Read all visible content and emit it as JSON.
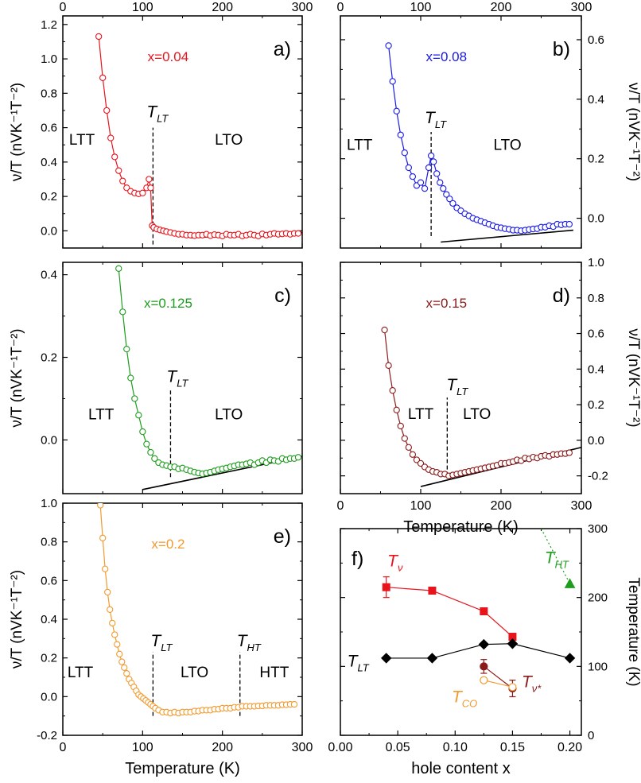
{
  "chart_data": [
    {
      "panel_label": "a)",
      "type": "scatter",
      "series_label": "x=0.04",
      "color": "#e8141c",
      "x_ticks_top": [
        "0",
        "100",
        "200",
        "300"
      ],
      "x_ticks_bottom": [],
      "y_ticks": [
        "0.0",
        "0.2",
        "0.4",
        "0.6",
        "0.8",
        "1.0",
        "1.2"
      ],
      "y_tick_values": [
        0,
        0.2,
        0.4,
        0.6,
        0.8,
        1.0,
        1.2
      ],
      "ylabel": "ν/T (nVK⁻¹T⁻²)",
      "y_axis_side": "left",
      "xlim": [
        0,
        300
      ],
      "ylim": [
        -0.1,
        1.25
      ],
      "annotations": [
        {
          "text": "LTT",
          "x": 24,
          "y": 0.5
        },
        {
          "text": "LTO",
          "x": 208,
          "y": 0.5
        },
        {
          "text": "T",
          "sub": "LT",
          "x": 105,
          "y": 0.66
        }
      ],
      "transitions": [
        {
          "x": 113,
          "y1": -0.08,
          "y2": 0.6
        }
      ],
      "fit_line": {
        "x": [
          160,
          300
        ],
        "y": [
          -0.04,
          -0.01
        ]
      },
      "points": {
        "x": [
          45,
          50,
          55,
          60,
          65,
          70,
          75,
          80,
          85,
          90,
          95,
          100,
          105,
          108,
          110,
          112,
          114,
          118,
          122,
          126,
          130,
          135,
          140,
          145,
          150,
          155,
          160,
          165,
          170,
          175,
          180,
          185,
          190,
          195,
          200,
          205,
          210,
          215,
          220,
          225,
          230,
          235,
          240,
          245,
          250,
          255,
          260,
          265,
          270,
          275,
          280,
          285,
          290,
          295
        ],
        "y": [
          1.13,
          0.89,
          0.7,
          0.54,
          0.43,
          0.35,
          0.29,
          0.25,
          0.23,
          0.22,
          0.215,
          0.22,
          0.25,
          0.3,
          0.25,
          0.03,
          0.02,
          0.01,
          0.005,
          0.0,
          -0.005,
          -0.01,
          -0.015,
          -0.02,
          -0.02,
          -0.025,
          -0.025,
          -0.028,
          -0.025,
          -0.025,
          -0.02,
          -0.028,
          -0.022,
          -0.025,
          -0.03,
          -0.02,
          -0.025,
          -0.025,
          -0.02,
          -0.03,
          -0.025,
          -0.02,
          -0.025,
          -0.03,
          -0.018,
          -0.025,
          -0.02,
          -0.015,
          -0.02,
          -0.018,
          -0.015,
          -0.02,
          -0.015,
          -0.015
        ]
      }
    },
    {
      "panel_label": "b)",
      "type": "scatter",
      "series_label": "x=0.08",
      "color": "#1a1ae6",
      "x_ticks_top": [
        "0",
        "100",
        "200",
        "300"
      ],
      "x_ticks_bottom": [],
      "y_ticks": [
        "0.0",
        "0.2",
        "0.4",
        "0.6"
      ],
      "y_tick_values": [
        0,
        0.2,
        0.4,
        0.6
      ],
      "ylabel": "ν/T (nVK⁻¹T⁻²)",
      "y_axis_side": "right",
      "xlim": [
        0,
        300
      ],
      "ylim": [
        -0.1,
        0.68
      ],
      "annotations": [
        {
          "text": "LTT",
          "x": 24,
          "y": 0.23
        },
        {
          "text": "LTO",
          "x": 208,
          "y": 0.23
        },
        {
          "text": "T",
          "sub": "LT",
          "x": 105,
          "y": 0.32
        }
      ],
      "transitions": [
        {
          "x": 113,
          "y1": -0.06,
          "y2": 0.29
        }
      ],
      "fit_line": {
        "x": [
          125,
          290
        ],
        "y": [
          -0.08,
          -0.04
        ]
      },
      "points": {
        "x": [
          60,
          65,
          70,
          75,
          80,
          85,
          90,
          95,
          100,
          105,
          110,
          113,
          116,
          120,
          124,
          128,
          132,
          136,
          140,
          145,
          150,
          155,
          160,
          165,
          170,
          175,
          180,
          185,
          190,
          195,
          200,
          205,
          210,
          215,
          220,
          225,
          230,
          235,
          240,
          245,
          250,
          255,
          260,
          265,
          270,
          275,
          280,
          285
        ],
        "y": [
          0.58,
          0.46,
          0.36,
          0.28,
          0.22,
          0.17,
          0.14,
          0.11,
          0.12,
          0.1,
          0.17,
          0.21,
          0.19,
          0.15,
          0.12,
          0.1,
          0.08,
          0.065,
          0.05,
          0.035,
          0.025,
          0.015,
          0.008,
          0.0,
          -0.005,
          -0.01,
          -0.015,
          -0.02,
          -0.025,
          -0.03,
          -0.032,
          -0.035,
          -0.037,
          -0.04,
          -0.04,
          -0.042,
          -0.04,
          -0.038,
          -0.036,
          -0.035,
          -0.03,
          -0.03,
          -0.025,
          -0.028,
          -0.02,
          -0.022,
          -0.02,
          -0.02
        ]
      }
    },
    {
      "panel_label": "c)",
      "type": "scatter",
      "series_label": "x=0.125",
      "color": "#1f9d1f",
      "x_ticks_top": [],
      "x_ticks_bottom": [],
      "y_ticks": [
        "0.0",
        "0.2",
        "0.4"
      ],
      "y_tick_values": [
        0,
        0.2,
        0.4
      ],
      "ylabel": "ν/T (nVK⁻¹T⁻²)",
      "y_axis_side": "left",
      "xlim": [
        0,
        300
      ],
      "ylim": [
        -0.13,
        0.43
      ],
      "annotations": [
        {
          "text": "LTT",
          "x": 48,
          "y": 0.05
        },
        {
          "text": "LTO",
          "x": 208,
          "y": 0.05
        },
        {
          "text": "T",
          "sub": "LT",
          "x": 130,
          "y": 0.14
        }
      ],
      "transitions": [
        {
          "x": 135,
          "y1": -0.09,
          "y2": 0.12
        }
      ],
      "fit_line": {
        "x": [
          100,
          300
        ],
        "y": [
          -0.12,
          -0.04
        ]
      },
      "points": {
        "x": [
          70,
          75,
          80,
          85,
          90,
          95,
          100,
          105,
          110,
          115,
          120,
          125,
          130,
          135,
          140,
          145,
          150,
          155,
          160,
          165,
          170,
          175,
          180,
          185,
          190,
          195,
          200,
          205,
          210,
          215,
          220,
          225,
          230,
          235,
          240,
          245,
          250,
          255,
          260,
          265,
          270,
          275,
          280,
          285,
          290,
          295
        ],
        "y": [
          0.415,
          0.31,
          0.22,
          0.15,
          0.1,
          0.06,
          0.02,
          -0.01,
          -0.03,
          -0.045,
          -0.055,
          -0.06,
          -0.062,
          -0.065,
          -0.065,
          -0.07,
          -0.068,
          -0.072,
          -0.075,
          -0.078,
          -0.08,
          -0.082,
          -0.08,
          -0.078,
          -0.075,
          -0.072,
          -0.07,
          -0.068,
          -0.065,
          -0.063,
          -0.06,
          -0.06,
          -0.058,
          -0.055,
          -0.06,
          -0.055,
          -0.05,
          -0.055,
          -0.048,
          -0.05,
          -0.052,
          -0.045,
          -0.048,
          -0.045,
          -0.045,
          -0.042
        ]
      }
    },
    {
      "panel_label": "d)",
      "type": "scatter",
      "series_label": "x=0.15",
      "color": "#8b1a1a",
      "x_ticks_top": [],
      "x_ticks_bottom": [
        "0",
        "100",
        "200",
        "300"
      ],
      "xlabel": "Temperature (K)",
      "y_ticks": [
        "-0.2",
        "0.0",
        "0.2",
        "0.4",
        "0.6",
        "0.8",
        "1.0"
      ],
      "y_tick_values": [
        -0.2,
        0,
        0.2,
        0.4,
        0.6,
        0.8,
        1.0
      ],
      "ylabel": "ν/T (nVK⁻¹T⁻²)",
      "y_axis_side": "right",
      "xlim": [
        0,
        300
      ],
      "ylim": [
        -0.3,
        1.0
      ],
      "annotations": [
        {
          "text": "LTT",
          "x": 100,
          "y": 0.12
        },
        {
          "text": "LTO",
          "x": 170,
          "y": 0.12
        },
        {
          "text": "T",
          "sub": "LT",
          "x": 132,
          "y": 0.28
        }
      ],
      "transitions": [
        {
          "x": 133,
          "y1": -0.2,
          "y2": 0.24
        }
      ],
      "fit_line": {
        "x": [
          100,
          300
        ],
        "y": [
          -0.26,
          -0.04
        ]
      },
      "points": {
        "x": [
          55,
          60,
          65,
          70,
          75,
          80,
          85,
          90,
          95,
          100,
          105,
          110,
          115,
          120,
          125,
          130,
          135,
          140,
          145,
          150,
          155,
          160,
          165,
          170,
          175,
          180,
          185,
          190,
          195,
          200,
          205,
          210,
          215,
          220,
          225,
          230,
          235,
          240,
          245,
          250,
          255,
          260,
          265,
          270,
          275,
          280,
          285
        ],
        "y": [
          0.62,
          0.42,
          0.28,
          0.17,
          0.08,
          0.01,
          -0.04,
          -0.08,
          -0.11,
          -0.13,
          -0.15,
          -0.165,
          -0.175,
          -0.18,
          -0.19,
          -0.19,
          -0.2,
          -0.195,
          -0.19,
          -0.185,
          -0.18,
          -0.175,
          -0.17,
          -0.165,
          -0.16,
          -0.155,
          -0.15,
          -0.145,
          -0.14,
          -0.13,
          -0.13,
          -0.125,
          -0.12,
          -0.11,
          -0.115,
          -0.1,
          -0.105,
          -0.095,
          -0.1,
          -0.09,
          -0.085,
          -0.09,
          -0.08,
          -0.08,
          -0.075,
          -0.075,
          -0.07
        ]
      }
    },
    {
      "panel_label": "e)",
      "type": "scatter",
      "series_label": "x=0.2",
      "color": "#f29a2e",
      "x_ticks_top": [],
      "x_ticks_bottom": [
        "0",
        "100",
        "200",
        "300"
      ],
      "xlabel": "Temperature (K)",
      "y_ticks": [
        "-0.2",
        "0.0",
        "0.2",
        "0.4",
        "0.6",
        "0.8",
        "1.0"
      ],
      "y_tick_values": [
        -0.2,
        0,
        0.2,
        0.4,
        0.6,
        0.8,
        1.0
      ],
      "ylabel": "ν/T (nVK⁻¹T⁻²)",
      "y_axis_side": "left",
      "xlim": [
        0,
        300
      ],
      "ylim": [
        -0.2,
        1.0
      ],
      "annotations": [
        {
          "text": "LTT",
          "x": 22,
          "y": 0.1
        },
        {
          "text": "LTO",
          "x": 165,
          "y": 0.1
        },
        {
          "text": "HTT",
          "x": 265,
          "y": 0.1
        },
        {
          "text": "T",
          "sub": "LT",
          "x": 110,
          "y": 0.26
        },
        {
          "text": "T",
          "sub": "HT",
          "x": 218,
          "y": 0.26
        }
      ],
      "transitions": [
        {
          "x": 113,
          "y1": -0.1,
          "y2": 0.23
        },
        {
          "x": 222,
          "y1": -0.1,
          "y2": 0.23
        }
      ],
      "fit_line": null,
      "points": {
        "x": [
          47,
          50,
          53,
          56,
          59,
          62,
          65,
          68,
          71,
          74,
          77,
          80,
          83,
          86,
          89,
          92,
          95,
          98,
          101,
          104,
          107,
          110,
          113,
          116,
          120,
          125,
          130,
          135,
          140,
          145,
          150,
          155,
          160,
          165,
          170,
          175,
          180,
          185,
          190,
          195,
          200,
          205,
          210,
          215,
          220,
          225,
          230,
          235,
          240,
          245,
          250,
          255,
          260,
          265,
          270,
          275,
          280,
          285,
          290
        ],
        "y": [
          0.99,
          0.82,
          0.66,
          0.54,
          0.45,
          0.38,
          0.32,
          0.27,
          0.22,
          0.18,
          0.15,
          0.12,
          0.09,
          0.07,
          0.05,
          0.03,
          0.01,
          0.0,
          -0.01,
          -0.02,
          -0.03,
          -0.04,
          -0.05,
          -0.06,
          -0.07,
          -0.08,
          -0.08,
          -0.085,
          -0.08,
          -0.085,
          -0.08,
          -0.08,
          -0.08,
          -0.075,
          -0.075,
          -0.07,
          -0.07,
          -0.07,
          -0.065,
          -0.065,
          -0.06,
          -0.06,
          -0.06,
          -0.055,
          -0.055,
          -0.05,
          -0.05,
          -0.05,
          -0.05,
          -0.048,
          -0.048,
          -0.045,
          -0.045,
          -0.045,
          -0.045,
          -0.042,
          -0.042,
          -0.04,
          -0.04
        ]
      }
    },
    {
      "panel_label": "f)",
      "type": "line",
      "xlabel": "hole content x",
      "ylabel": "Temperature (K)",
      "x_ticks": [
        "0.00",
        "0.05",
        "0.10",
        "0.15",
        "0.20"
      ],
      "x_tick_values": [
        0,
        0.05,
        0.1,
        0.15,
        0.2
      ],
      "y_ticks": [
        "0",
        "100",
        "200",
        "300"
      ],
      "y_tick_values": [
        0,
        100,
        200,
        300
      ],
      "y_axis_side": "right",
      "xlim": [
        0,
        0.21
      ],
      "ylim": [
        0,
        300
      ],
      "series": [
        {
          "label": "T",
          "sub": "ν",
          "color": "#e8141c",
          "marker": "square",
          "filled": true,
          "x": [
            0.04,
            0.08,
            0.125,
            0.15
          ],
          "y": [
            215,
            210,
            180,
            143
          ],
          "err": [
            15,
            5,
            5,
            5
          ],
          "label_pos": [
            0.041,
            245
          ]
        },
        {
          "label": "T",
          "sub": "LT",
          "color": "#000000",
          "marker": "diamond",
          "filled": true,
          "x": [
            0.04,
            0.08,
            0.125,
            0.15,
            0.2
          ],
          "y": [
            112,
            112,
            132,
            133,
            112
          ],
          "err": null,
          "label_pos": [
            0.006,
            100
          ]
        },
        {
          "label": "T",
          "sub": "HT",
          "color": "#1f9d1f",
          "marker": "triangle",
          "filled": true,
          "dotted": true,
          "x": [
            0.175,
            0.2
          ],
          "y": [
            300,
            220
          ],
          "err": null,
          "marker_index": [
            1
          ],
          "label_pos": [
            0.178,
            250
          ]
        },
        {
          "label": "T",
          "sub": "ν*",
          "color": "#8b1a1a",
          "marker": "circle",
          "filled": true,
          "x": [
            0.125,
            0.15
          ],
          "y": [
            100,
            68
          ],
          "err": [
            10,
            12
          ],
          "label_pos": [
            0.158,
            70
          ]
        },
        {
          "label": "T",
          "sub": "CO",
          "color": "#f29a2e",
          "marker": "circle",
          "filled": false,
          "x": [
            0.125,
            0.15
          ],
          "y": [
            80,
            70
          ],
          "err": null,
          "label_pos": [
            0.097,
            48
          ]
        }
      ]
    }
  ]
}
